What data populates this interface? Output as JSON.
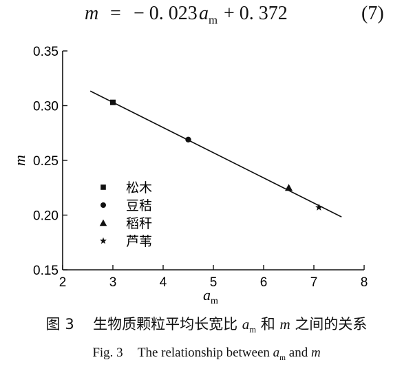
{
  "equation": {
    "lhs": "m",
    "eq": "=",
    "coef": "− 0. 023",
    "var": "a",
    "var_sub": "m",
    "const": "+ 0. 372",
    "number": "(7)"
  },
  "chart_data": {
    "type": "scatter",
    "xlabel": "a",
    "xlabel_sub": "m",
    "ylabel": "m",
    "xlim": [
      2,
      8
    ],
    "ylim": [
      0.15,
      0.35
    ],
    "xticks": [
      "2",
      "3",
      "4",
      "5",
      "6",
      "7",
      "8"
    ],
    "yticks": [
      "0.15",
      "0.20",
      "0.25",
      "0.30",
      "0.35"
    ],
    "xtick_values": [
      2,
      3,
      4,
      5,
      6,
      7,
      8
    ],
    "ytick_values": [
      0.15,
      0.2,
      0.25,
      0.3,
      0.35
    ],
    "fit_line": {
      "slope": -0.023,
      "intercept": 0.372,
      "x_range": [
        2.55,
        7.55
      ]
    },
    "series": [
      {
        "name": "松木",
        "marker": "square",
        "points": [
          {
            "x": 3.0,
            "y": 0.303
          }
        ]
      },
      {
        "name": "豆秸",
        "marker": "circle",
        "points": [
          {
            "x": 4.5,
            "y": 0.269
          }
        ]
      },
      {
        "name": "稻秆",
        "marker": "triangle",
        "points": [
          {
            "x": 6.5,
            "y": 0.225
          }
        ]
      },
      {
        "name": "芦苇",
        "marker": "star",
        "points": [
          {
            "x": 7.1,
            "y": 0.207
          }
        ]
      }
    ],
    "grid": false,
    "legend_position": "lower-left"
  },
  "caption": {
    "zh_prefix": "图 3",
    "zh_text_1": "生物质颗粒平均长宽比",
    "zh_var": "a",
    "zh_var_sub": "m",
    "zh_text_2": "和",
    "zh_var2": "m",
    "zh_text_3": "之间的关系",
    "en_prefix": "Fig. 3",
    "en_text": "The relationship between",
    "en_var": "a",
    "en_var_sub": "m",
    "en_and": "and",
    "en_var2": "m"
  }
}
